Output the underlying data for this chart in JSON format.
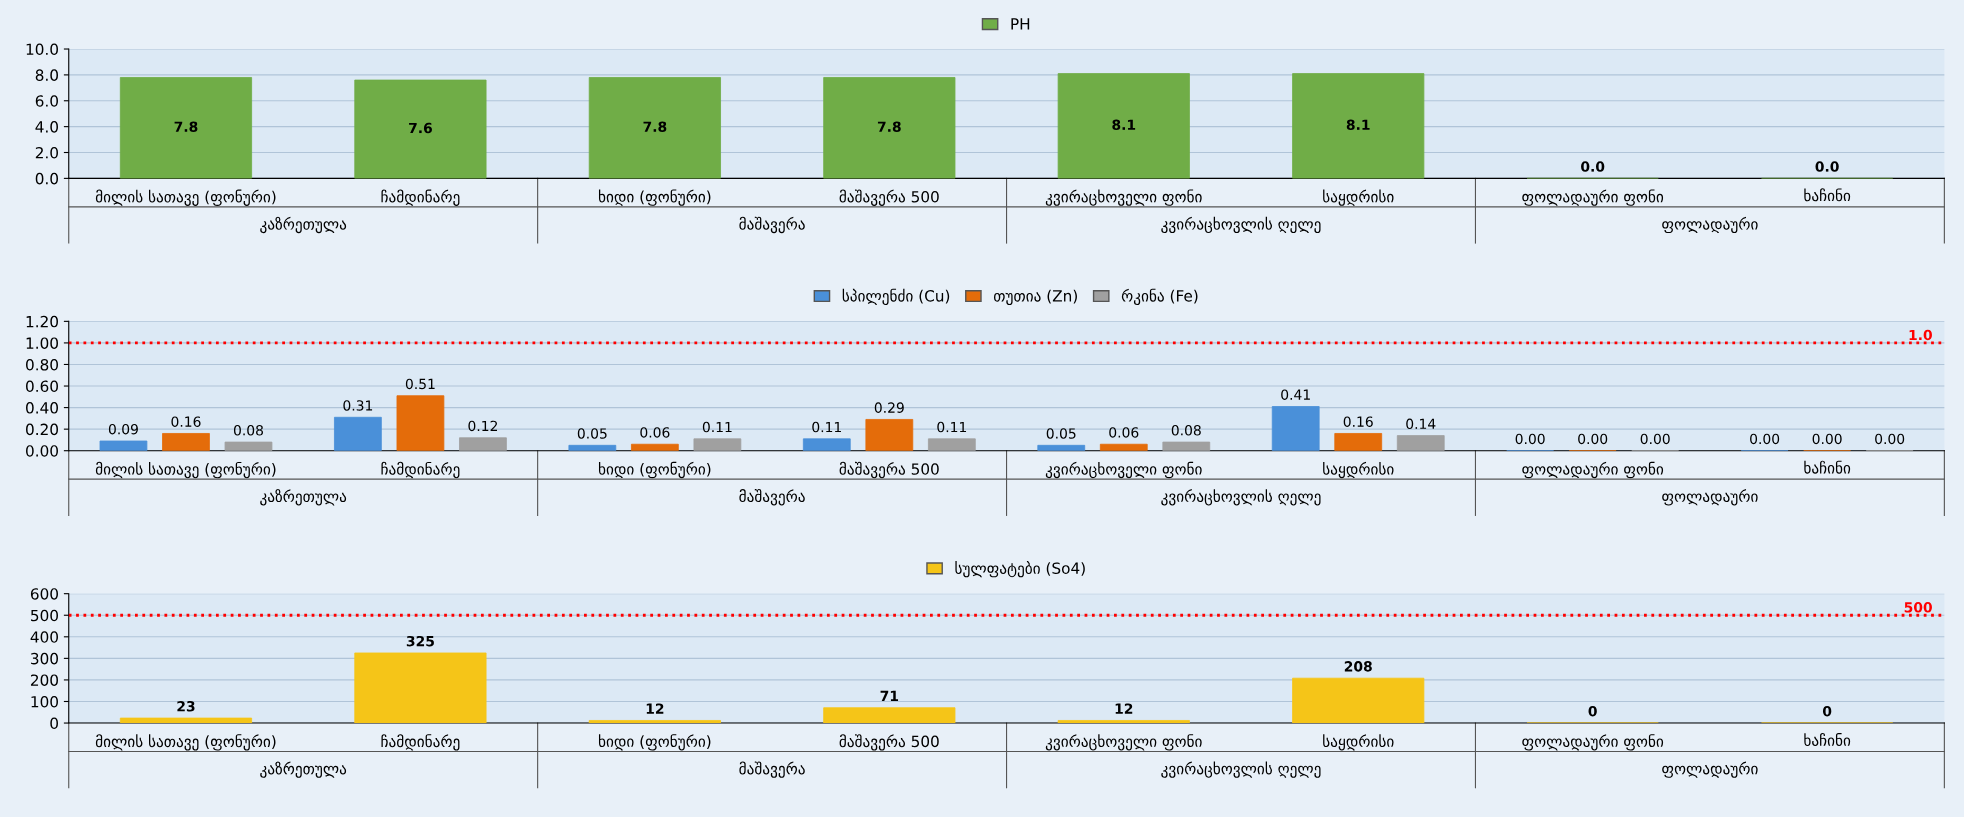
{
  "chart_data": [
    {
      "type": "bar",
      "categories": [
        "მილის სათავე (ფონური)",
        "ჩამდინარე",
        "ხიდი (ფონური)",
        "მაშავერა 500",
        "კვირაცხოველი ფონი",
        "საყდრისი",
        "ფოლადაური ფონი",
        "ხაჩინი"
      ],
      "series": [
        {
          "name": "PH",
          "color": "#70ad47",
          "values": [
            7.8,
            7.6,
            7.8,
            7.8,
            8.1,
            8.1,
            0,
            0
          ],
          "value_labels": [
            "7.8",
            "7.6",
            "7.8",
            "7.8",
            "8.1",
            "8.1",
            "0.0",
            "0.0"
          ]
        }
      ],
      "ylim": [
        0,
        10
      ],
      "yticks": [
        {
          "value": 0,
          "label": "0.0"
        },
        {
          "value": 2,
          "label": "2.0"
        },
        {
          "value": 4,
          "label": "4.0"
        },
        {
          "value": 6,
          "label": "6.0"
        },
        {
          "value": 8,
          "label": "8.0"
        },
        {
          "value": 10,
          "label": "10.0"
        }
      ],
      "grid": "y",
      "legend": "top",
      "annotations": [
        "კაზრეთულა",
        "მაშავერა",
        "კვირაცხოვლის ღელე",
        "ფოლადაური"
      ]
    },
    {
      "type": "bar",
      "categories": [
        "მილის სათავე (ფონური)",
        "ჩამდინარე",
        "ხიდი (ფონური)",
        "მაშავერა 500",
        "კვირაცხოველი ფონი",
        "საყდრისი",
        "ფოლადაური ფონი",
        "ხაჩინი"
      ],
      "series": [
        {
          "name": "სპილენძი (Cu)",
          "color": "#4a90d9",
          "values": [
            0.09,
            0.31,
            0.05,
            0.11,
            0.05,
            0.41,
            0,
            0
          ],
          "value_labels": [
            "0.09",
            "0.31",
            "0.05",
            "0.11",
            "0.05",
            "0.41",
            "0.00",
            "0.00"
          ]
        },
        {
          "name": "თუთია (Zn)",
          "color": "#e46c0a",
          "values": [
            0.16,
            0.51,
            0.06,
            0.29,
            0.06,
            0.16,
            0,
            0
          ],
          "value_labels": [
            "0.16",
            "0.51",
            "0.06",
            "0.29",
            "0.06",
            "0.16",
            "0.00",
            "0.00"
          ]
        },
        {
          "name": "რკინა (Fe)",
          "color": "#a0a0a0",
          "values": [
            0.08,
            0.12,
            0.11,
            0.11,
            0.08,
            0.14,
            0,
            0
          ],
          "value_labels": [
            "0.08",
            "0.12",
            "0.11",
            "0.11",
            "0.08",
            "0.14",
            "0.00",
            "0.00"
          ]
        }
      ],
      "ylim": [
        0,
        1.2
      ],
      "yticks": [
        {
          "value": 0,
          "label": "0.00"
        },
        {
          "value": 0.2,
          "label": "0.20"
        },
        {
          "value": 0.4,
          "label": "0.40"
        },
        {
          "value": 0.6,
          "label": "0.60"
        },
        {
          "value": 0.8,
          "label": "0.80"
        },
        {
          "value": 1.0,
          "label": "1.00"
        },
        {
          "value": 1.2,
          "label": "1.20"
        }
      ],
      "ref_lines": [
        {
          "axis": "y",
          "value": 1.0,
          "label": "1.0",
          "color": "#ff0000",
          "line_style": "dotted"
        }
      ],
      "grid": "y",
      "legend": "top",
      "annotations": [
        "კაზრეთულა",
        "მაშავერა",
        "კვირაცხოვლის ღელე",
        "ფოლადაური"
      ]
    },
    {
      "type": "bar",
      "categories": [
        "მილის სათავე (ფონური)",
        "ჩამდინარე",
        "ხიდი (ფონური)",
        "მაშავერა 500",
        "კვირაცხოველი ფონი",
        "საყდრისი",
        "ფოლადაური ფონი",
        "ხაჩინი"
      ],
      "series": [
        {
          "name": "სულფატები (So4)",
          "color": "#f5c518",
          "values": [
            23,
            325,
            12,
            71,
            12,
            208,
            0,
            0
          ],
          "value_labels": [
            "23",
            "325",
            "12",
            "71",
            "12",
            "208",
            "0",
            "0"
          ]
        }
      ],
      "ylim": [
        0,
        600
      ],
      "yticks": [
        0,
        100,
        200,
        300,
        400,
        500,
        600
      ],
      "ref_lines": [
        {
          "axis": "y",
          "value": 500,
          "label": "500",
          "color": "#ff0000",
          "line_style": "dotted"
        }
      ],
      "grid": "y",
      "legend": "top",
      "annotations": [
        "კაზრეთულა",
        "მაშავერა",
        "კვირაცხოვლის ღელე",
        "ფოლადაური"
      ]
    }
  ]
}
